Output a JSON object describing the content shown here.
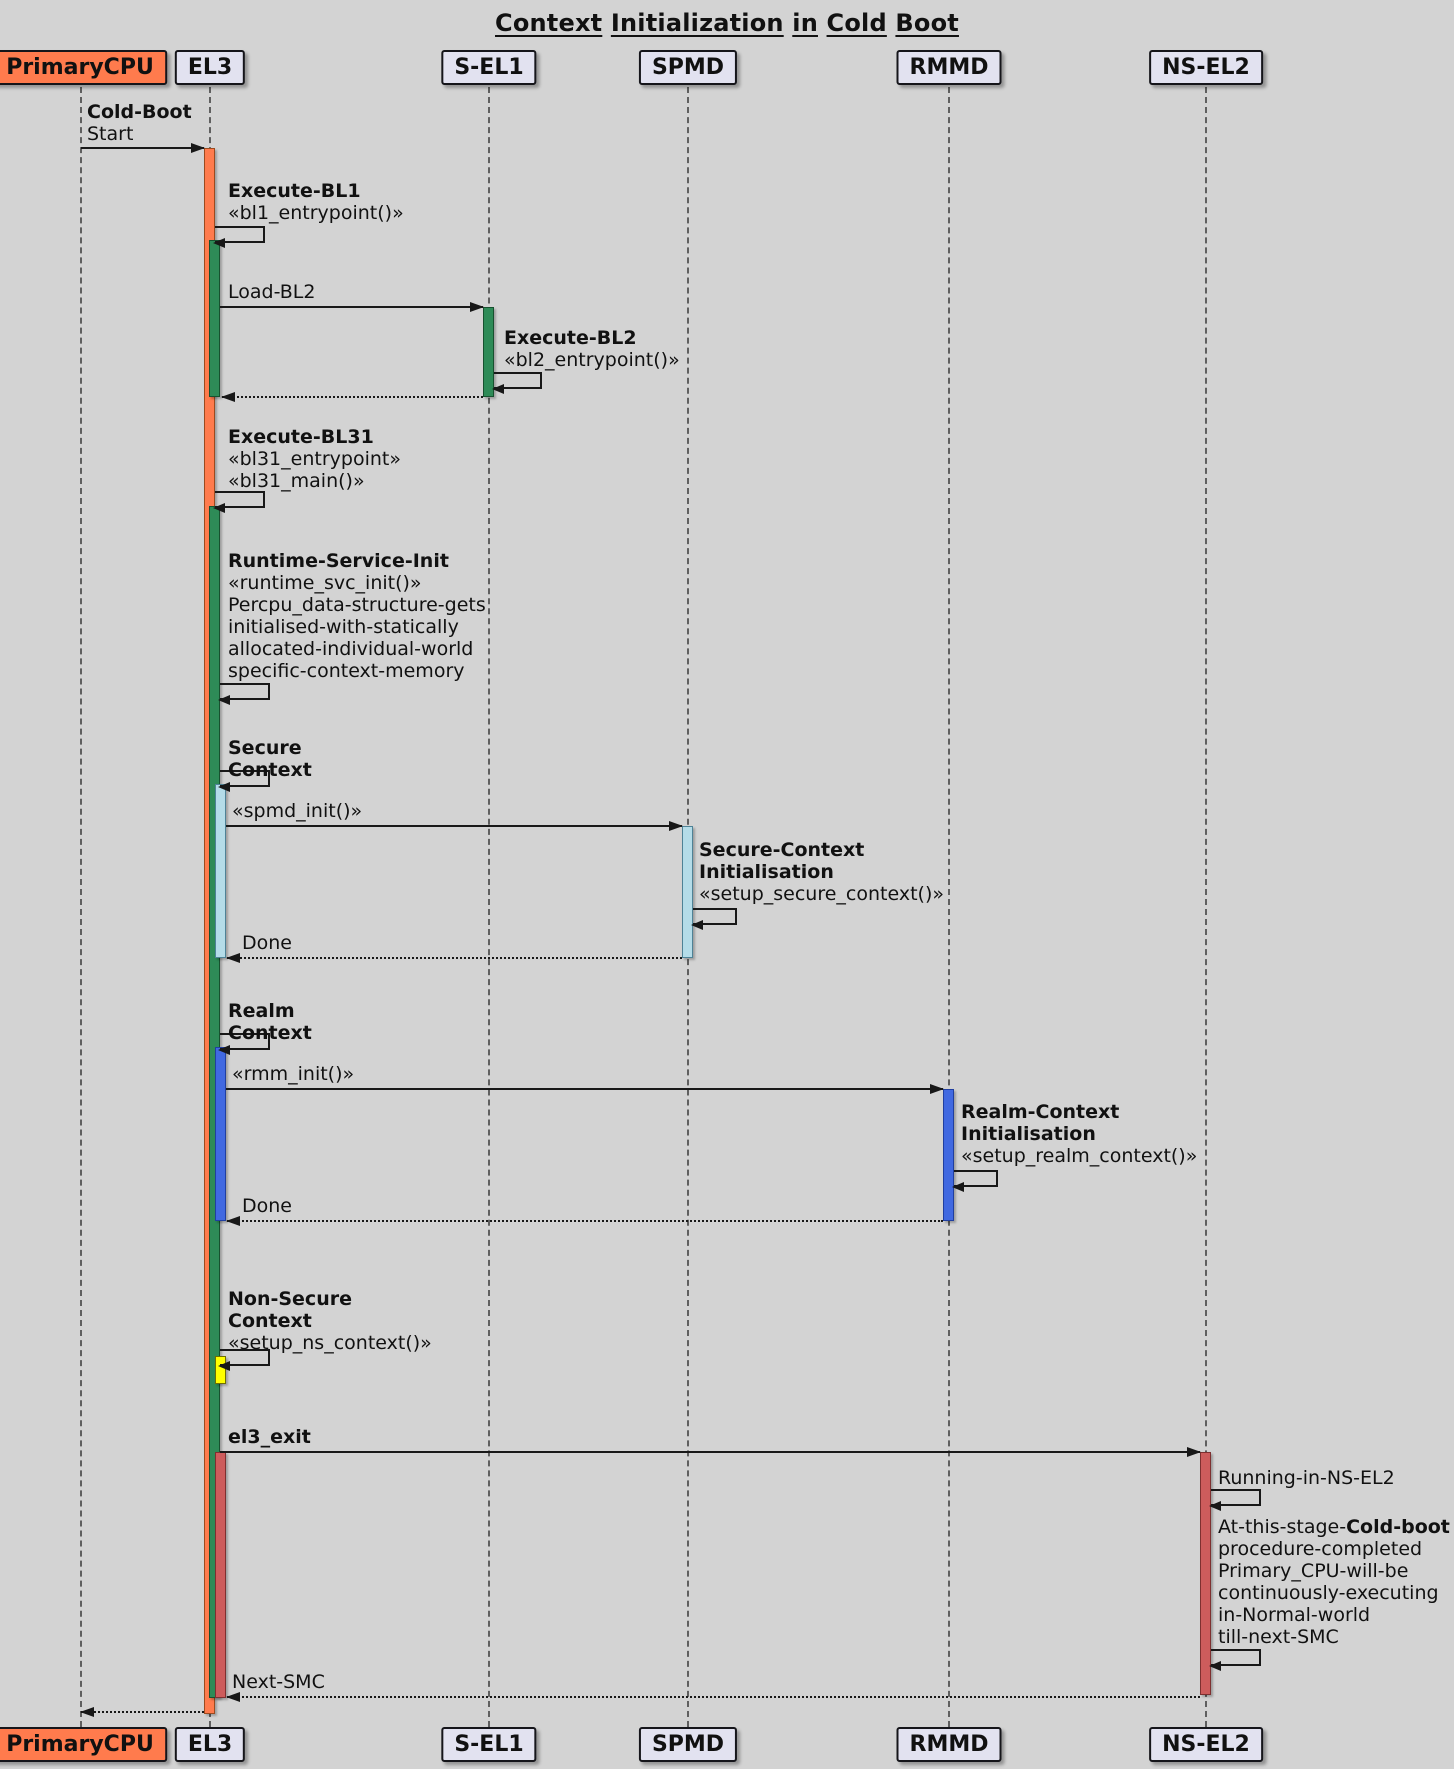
{
  "title": "Context Initialization in Cold Boot",
  "participants": [
    {
      "label": "PrimaryCPU"
    },
    {
      "label": "EL3"
    },
    {
      "label": "S-EL1"
    },
    {
      "label": "SPMD"
    },
    {
      "label": "RMMD"
    },
    {
      "label": "NS-EL2"
    }
  ],
  "messages": {
    "cold_boot": {
      "bold": "Cold-Boot",
      "plain": "Start"
    },
    "execute_bl1": {
      "title": "Execute-BL1",
      "stereotype": "«bl1_entrypoint()»"
    },
    "load_bl2": {
      "label": "Load-BL2"
    },
    "execute_bl2": {
      "title": "Execute-BL2",
      "stereotype": "«bl2_entrypoint()»"
    },
    "execute_bl31": {
      "title": "Execute-BL31",
      "stereotype1": "«bl31_entrypoint»",
      "stereotype2": "«bl31_main()»"
    },
    "runtime_service_init": {
      "title": "Runtime-Service-Init",
      "stereotype": "«runtime_svc_init()»",
      "lines": [
        "Percpu_data-structure-gets",
        "initialised-with-statically",
        "allocated-individual-world",
        "specific-context-memory"
      ]
    },
    "secure_context": {
      "line1": "Secure",
      "line2": "Context"
    },
    "spmd_init": {
      "label": "«spmd_init()»"
    },
    "secure_context_init": {
      "line1": "Secure-Context",
      "line2": "Initialisation",
      "stereotype": "«setup_secure_context()»"
    },
    "done_secure": {
      "label": "Done"
    },
    "realm_context": {
      "line1": "Realm",
      "line2": "Context"
    },
    "rmm_init": {
      "label": "«rmm_init()»"
    },
    "realm_context_init": {
      "line1": "Realm-Context",
      "line2": "Initialisation",
      "stereotype": "«setup_realm_context()»"
    },
    "done_realm": {
      "label": "Done"
    },
    "non_secure_context": {
      "line1": "Non-Secure",
      "line2": "Context",
      "stereotype": "«setup_ns_context()»"
    },
    "el3_exit": {
      "label": "el3_exit"
    },
    "running_in_ns_el2": {
      "label": "Running-in-NS-EL2"
    },
    "cold_boot_note": {
      "line1_plain": "At-this-stage-",
      "line1_bold": "Cold-boot",
      "lines": [
        "procedure-completed",
        "Primary_CPU-will-be",
        "continuously-executing",
        "in-Normal-world",
        "till-next-SMC"
      ]
    },
    "next_smc": {
      "label": "Next-SMC"
    }
  },
  "colors": {
    "bg": "#D3D3D3",
    "line": "#181818",
    "participant": "#E2E2F0",
    "participant-border": "#15151A",
    "coral": "#FF7B4D",
    "coral-b": "#9C4A1F",
    "green": "#2E8B57",
    "green-b": "#17512F",
    "lightblue": "#B4DCE8",
    "lightblue-b": "#4E8296",
    "blue": "#4169E1",
    "blue-b": "#203FA0",
    "yellow": "#FFFF00",
    "yellow-b": "#6F6F00",
    "red": "#CD5C5C",
    "red-b": "#7E3030"
  }
}
